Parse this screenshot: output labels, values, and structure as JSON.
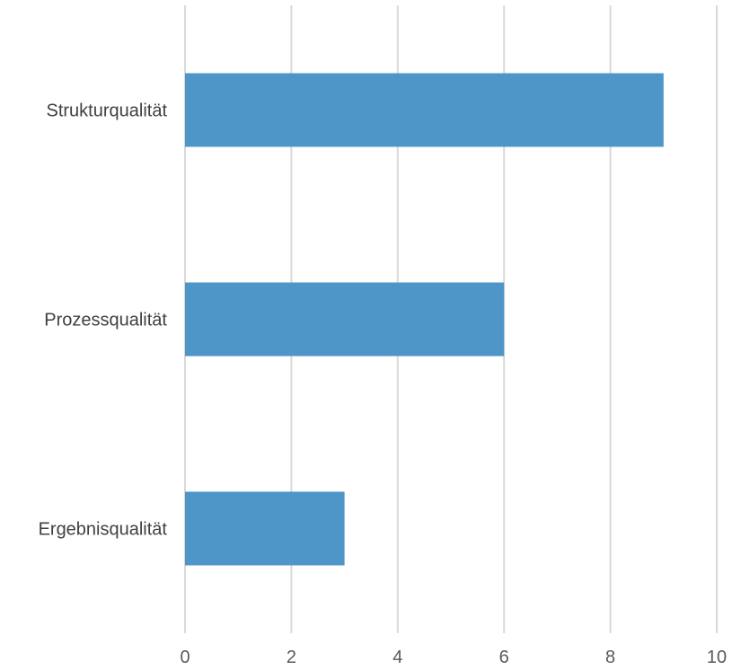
{
  "chart_data": {
    "type": "bar",
    "orientation": "horizontal",
    "categories": [
      "Strukturqualität",
      "Prozessqualität",
      "Ergebnisqualität"
    ],
    "values": [
      9,
      6,
      3
    ],
    "xlim": [
      0,
      10
    ],
    "x_ticks": [
      0,
      2,
      4,
      6,
      8,
      10
    ],
    "grid": true,
    "legend": "none",
    "title": "",
    "xlabel": "",
    "ylabel": "",
    "colors": {
      "bar": "#4e95c8",
      "grid": "#d9d9d9"
    }
  }
}
